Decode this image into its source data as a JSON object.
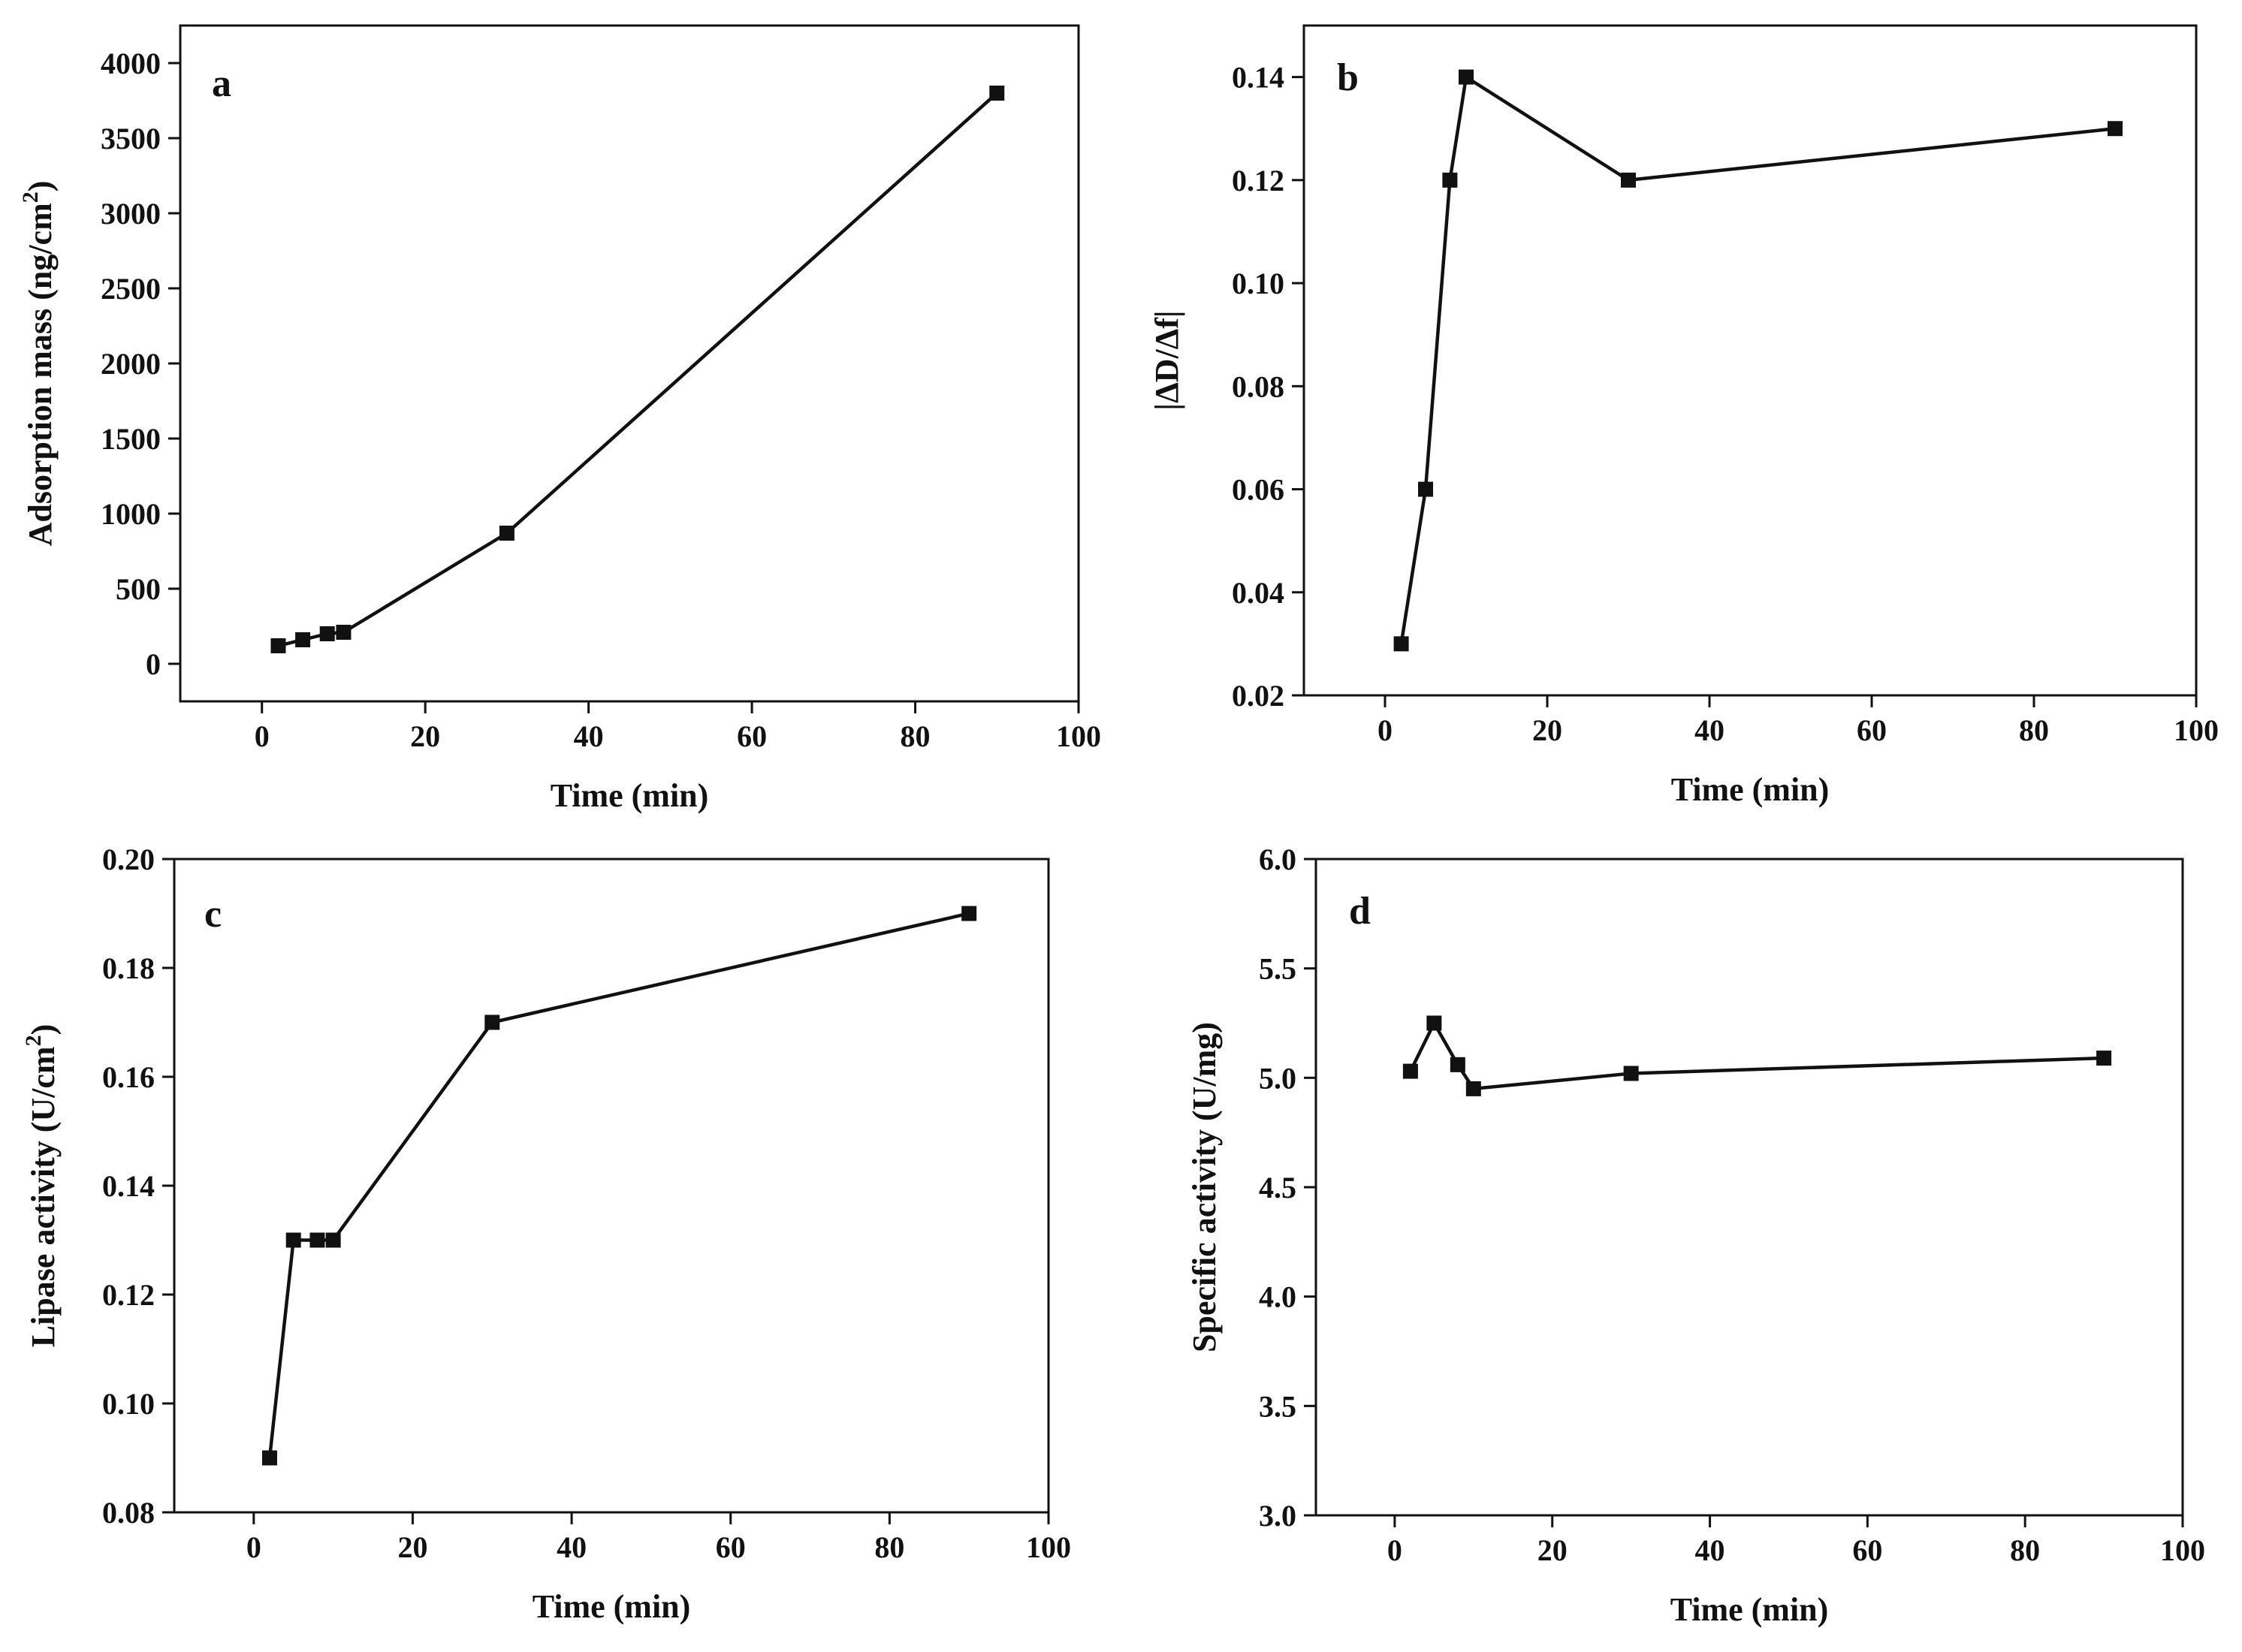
{
  "chart_data": [
    {
      "type": "line",
      "panel": "a",
      "xlabel": "Time (min)",
      "ylabel_main": "Adsorption mass (ng/cm",
      "ylabel_sup": "2",
      "ylabel_end": ")",
      "xlim": [
        -10,
        100
      ],
      "ylim": [
        -250,
        4250
      ],
      "xticks": [
        0,
        20,
        40,
        60,
        80,
        100
      ],
      "xtick_labels": [
        "0",
        "20",
        "40",
        "60",
        "80",
        "100"
      ],
      "yticks": [
        0,
        500,
        1000,
        1500,
        2000,
        2500,
        3000,
        3500,
        4000
      ],
      "ytick_labels": [
        "0",
        "500",
        "1000",
        "1500",
        "2000",
        "2500",
        "3000",
        "3500",
        "4000"
      ],
      "series": [
        {
          "name": "a",
          "x": [
            2,
            5,
            8,
            10,
            30,
            90
          ],
          "y": [
            120,
            160,
            200,
            210,
            870,
            3800
          ]
        }
      ]
    },
    {
      "type": "line",
      "panel": "b",
      "xlabel": "Time (min)",
      "ylabel_main": "|ΔD/Δf|",
      "ylabel_sup": "",
      "ylabel_end": "",
      "xlim": [
        -10,
        100
      ],
      "ylim": [
        0.02,
        0.15
      ],
      "xticks": [
        0,
        20,
        40,
        60,
        80,
        100
      ],
      "xtick_labels": [
        "0",
        "20",
        "40",
        "60",
        "80",
        "100"
      ],
      "yticks": [
        0.02,
        0.04,
        0.06,
        0.08,
        0.1,
        0.12,
        0.14
      ],
      "ytick_labels": [
        "0.02",
        "0.04",
        "0.06",
        "0.08",
        "0.10",
        "0.12",
        "0.14"
      ],
      "series": [
        {
          "name": "b",
          "x": [
            2,
            5,
            8,
            10,
            30,
            90
          ],
          "y": [
            0.03,
            0.06,
            0.12,
            0.14,
            0.12,
            0.13
          ]
        }
      ]
    },
    {
      "type": "line",
      "panel": "c",
      "xlabel": "Time (min)",
      "ylabel_main": "Lipase activity (U/cm",
      "ylabel_sup": "2",
      "ylabel_end": ")",
      "xlim": [
        -10,
        100
      ],
      "ylim": [
        0.08,
        0.2
      ],
      "xticks": [
        0,
        20,
        40,
        60,
        80,
        100
      ],
      "xtick_labels": [
        "0",
        "20",
        "40",
        "60",
        "80",
        "100"
      ],
      "yticks": [
        0.08,
        0.1,
        0.12,
        0.14,
        0.16,
        0.18,
        0.2
      ],
      "ytick_labels": [
        "0.08",
        "0.10",
        "0.12",
        "0.14",
        "0.16",
        "0.18",
        "0.20"
      ],
      "series": [
        {
          "name": "c",
          "x": [
            2,
            5,
            8,
            10,
            30,
            90
          ],
          "y": [
            0.09,
            0.13,
            0.13,
            0.13,
            0.17,
            0.19
          ]
        }
      ]
    },
    {
      "type": "line",
      "panel": "d",
      "xlabel": "Time (min)",
      "ylabel_main": "Specific activity (U/mg)",
      "ylabel_sup": "",
      "ylabel_end": "",
      "xlim": [
        -10,
        100
      ],
      "ylim": [
        3.0,
        6.0
      ],
      "xticks": [
        0,
        20,
        40,
        60,
        80,
        100
      ],
      "xtick_labels": [
        "0",
        "20",
        "40",
        "60",
        "80",
        "100"
      ],
      "yticks": [
        3.0,
        3.5,
        4.0,
        4.5,
        5.0,
        5.5,
        6.0
      ],
      "ytick_labels": [
        "3.0",
        "3.5",
        "4.0",
        "4.5",
        "5.0",
        "5.5",
        "6.0"
      ],
      "series": [
        {
          "name": "d",
          "x": [
            2,
            5,
            8,
            10,
            30,
            90
          ],
          "y": [
            5.03,
            5.25,
            5.06,
            4.95,
            5.02,
            5.09
          ]
        }
      ]
    }
  ]
}
